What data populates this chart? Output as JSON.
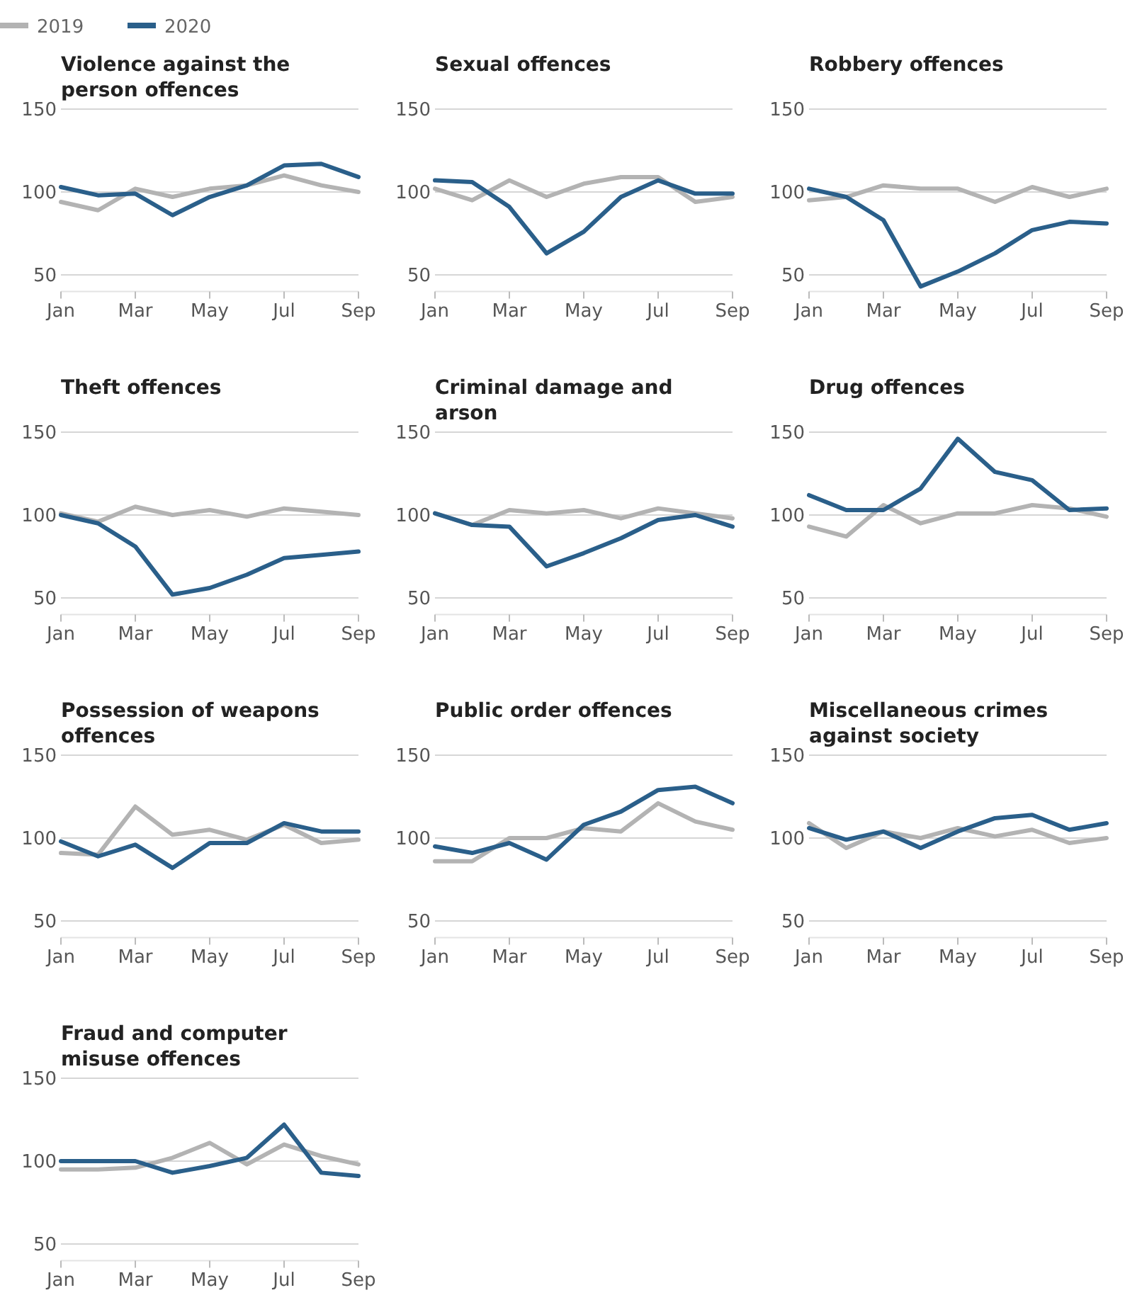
{
  "chart_data": [
    {
      "type": "line",
      "title": "Violence against the person offences",
      "categories": [
        "Jan",
        null,
        "Mar",
        null,
        "May",
        null,
        "Jul",
        null,
        "Sep"
      ],
      "ylim": [
        40,
        150
      ],
      "yticks": [
        50,
        100,
        150
      ],
      "grid": "y",
      "legend": "top left",
      "series": [
        {
          "name": "2019",
          "color": "#b3b3b3",
          "values": [
            94,
            89,
            102,
            97,
            102,
            104,
            110,
            104,
            100
          ]
        },
        {
          "name": "2020",
          "color": "#2a5f8a",
          "values": [
            103,
            98,
            99,
            86,
            97,
            104,
            116,
            117,
            109
          ]
        }
      ]
    },
    {
      "type": "line",
      "title": "Sexual offences",
      "categories": [
        "Jan",
        null,
        "Mar",
        null,
        "May",
        null,
        "Jul",
        null,
        "Sep"
      ],
      "ylim": [
        40,
        150
      ],
      "yticks": [
        50,
        100,
        150
      ],
      "grid": "y",
      "series": [
        {
          "color": "#b3b3b3",
          "values": [
            102,
            95,
            107,
            97,
            105,
            109,
            109,
            94,
            97
          ]
        },
        {
          "color": "#2a5f8a",
          "values": [
            107,
            106,
            91,
            63,
            76,
            97,
            107,
            99,
            99
          ]
        }
      ]
    },
    {
      "type": "line",
      "title": "Robbery offences",
      "categories": [
        "Jan",
        null,
        "Mar",
        null,
        "May",
        null,
        "Jul",
        null,
        "Sep"
      ],
      "ylim": [
        40,
        150
      ],
      "yticks": [
        50,
        100,
        150
      ],
      "grid": "y",
      "series": [
        {
          "color": "#b3b3b3",
          "values": [
            95,
            97,
            104,
            102,
            102,
            94,
            103,
            97,
            102
          ]
        },
        {
          "color": "#2a5f8a",
          "values": [
            102,
            97,
            83,
            43,
            52,
            63,
            77,
            82,
            81
          ]
        }
      ]
    },
    {
      "type": "line",
      "title": "Theft offences",
      "categories": [
        "Jan",
        null,
        "Mar",
        null,
        "May",
        null,
        "Jul",
        null,
        "Sep"
      ],
      "ylim": [
        40,
        150
      ],
      "yticks": [
        50,
        100,
        150
      ],
      "grid": "y",
      "series": [
        {
          "color": "#b3b3b3",
          "values": [
            101,
            96,
            105,
            100,
            103,
            99,
            104,
            102,
            100
          ]
        },
        {
          "color": "#2a5f8a",
          "values": [
            100,
            95,
            81,
            52,
            56,
            64,
            74,
            76,
            78
          ]
        }
      ]
    },
    {
      "type": "line",
      "title": "Criminal damage and arson",
      "categories": [
        "Jan",
        null,
        "Mar",
        null,
        "May",
        null,
        "Jul",
        null,
        "Sep"
      ],
      "ylim": [
        40,
        150
      ],
      "yticks": [
        50,
        100,
        150
      ],
      "grid": "y",
      "series": [
        {
          "color": "#b3b3b3",
          "values": [
            101,
            94,
            103,
            101,
            103,
            98,
            104,
            101,
            98
          ]
        },
        {
          "color": "#2a5f8a",
          "values": [
            101,
            94,
            93,
            69,
            77,
            86,
            97,
            100,
            93
          ]
        }
      ]
    },
    {
      "type": "line",
      "title": "Drug offences",
      "categories": [
        "Jan",
        null,
        "Mar",
        null,
        "May",
        null,
        "Jul",
        null,
        "Sep"
      ],
      "ylim": [
        40,
        150
      ],
      "yticks": [
        50,
        100,
        150
      ],
      "grid": "y",
      "series": [
        {
          "color": "#b3b3b3",
          "values": [
            93,
            87,
            106,
            95,
            101,
            101,
            106,
            104,
            99
          ]
        },
        {
          "color": "#2a5f8a",
          "values": [
            112,
            103,
            103,
            116,
            146,
            126,
            121,
            103,
            104
          ]
        }
      ]
    },
    {
      "type": "line",
      "title": "Possession of weapons offences",
      "categories": [
        "Jan",
        null,
        "Mar",
        null,
        "May",
        null,
        "Jul",
        null,
        "Sep"
      ],
      "ylim": [
        40,
        150
      ],
      "yticks": [
        50,
        100,
        150
      ],
      "grid": "y",
      "series": [
        {
          "color": "#b3b3b3",
          "values": [
            91,
            90,
            119,
            102,
            105,
            99,
            108,
            97,
            99
          ]
        },
        {
          "color": "#2a5f8a",
          "values": [
            98,
            89,
            96,
            82,
            97,
            97,
            109,
            104,
            104
          ]
        }
      ]
    },
    {
      "type": "line",
      "title": "Public order offences",
      "categories": [
        "Jan",
        null,
        "Mar",
        null,
        "May",
        null,
        "Jul",
        null,
        "Sep"
      ],
      "ylim": [
        40,
        150
      ],
      "yticks": [
        50,
        100,
        150
      ],
      "grid": "y",
      "series": [
        {
          "color": "#b3b3b3",
          "values": [
            86,
            86,
            100,
            100,
            106,
            104,
            121,
            110,
            105
          ]
        },
        {
          "color": "#2a5f8a",
          "values": [
            95,
            91,
            97,
            87,
            108,
            116,
            129,
            131,
            121
          ]
        }
      ]
    },
    {
      "type": "line",
      "title": "Miscellaneous crimes against society",
      "categories": [
        "Jan",
        null,
        "Mar",
        null,
        "May",
        null,
        "Jul",
        null,
        "Sep"
      ],
      "ylim": [
        40,
        150
      ],
      "yticks": [
        50,
        100,
        150
      ],
      "grid": "y",
      "series": [
        {
          "color": "#b3b3b3",
          "values": [
            109,
            94,
            104,
            100,
            106,
            101,
            105,
            97,
            100
          ]
        },
        {
          "color": "#2a5f8a",
          "values": [
            106,
            99,
            104,
            94,
            104,
            112,
            114,
            105,
            109
          ]
        }
      ]
    },
    {
      "type": "line",
      "title": "Fraud and computer misuse offences",
      "categories": [
        "Jan",
        null,
        "Mar",
        null,
        "May",
        null,
        "Jul",
        null,
        "Sep"
      ],
      "ylim": [
        40,
        150
      ],
      "yticks": [
        50,
        100,
        150
      ],
      "grid": "y",
      "series": [
        {
          "color": "#b3b3b3",
          "values": [
            95,
            95,
            96,
            102,
            111,
            98,
            110,
            103,
            98
          ]
        },
        {
          "color": "#2a5f8a",
          "values": [
            100,
            100,
            100,
            93,
            97,
            102,
            122,
            93,
            91
          ]
        }
      ]
    }
  ]
}
